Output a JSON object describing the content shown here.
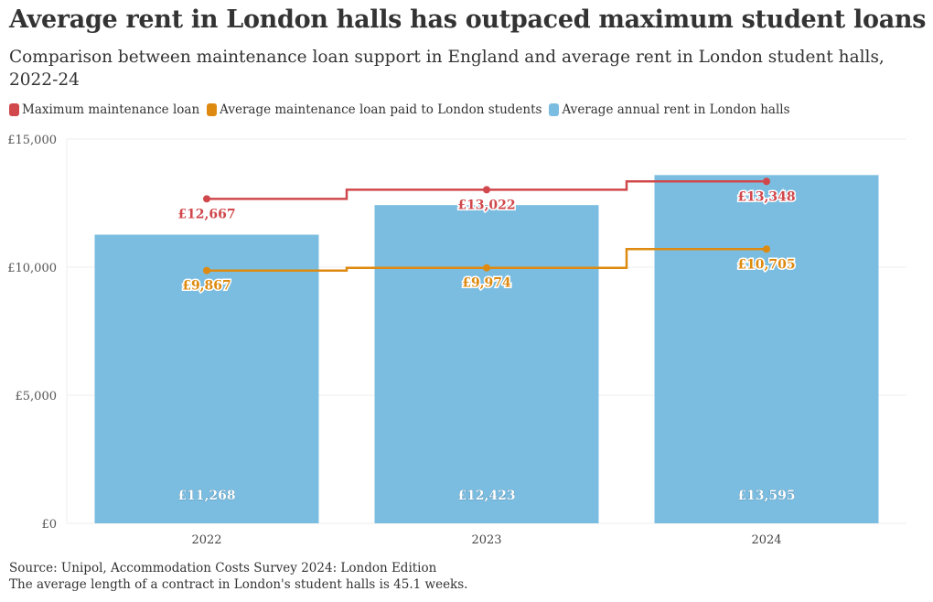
{
  "chart_data": {
    "type": "bar+step-line",
    "title": "Average rent in London halls has outpaced maximum student loans",
    "subtitle": "Comparison between maintenance loan support in England and average rent in London student halls, 2022-24",
    "categories": [
      "2022",
      "2023",
      "2024"
    ],
    "ylim": [
      0,
      15000
    ],
    "yticks": [
      0,
      5000,
      10000,
      15000
    ],
    "ytick_labels": [
      "£0",
      "£5,000",
      "£10,000",
      "£15,000"
    ],
    "grid": true,
    "legend_position": "top-left",
    "series": [
      {
        "name": "Maximum maintenance loan",
        "type": "step-line",
        "color": "#d0484c",
        "values": [
          12667,
          13022,
          13348
        ],
        "labels": [
          "£12,667",
          "£13,022",
          "£13,348"
        ]
      },
      {
        "name": "Average maintenance loan paid to London students",
        "type": "step-line",
        "color": "#de8a10",
        "values": [
          9867,
          9974,
          10705
        ],
        "labels": [
          "£9,867",
          "£9,974",
          "£10,705"
        ]
      },
      {
        "name": "Average annual rent in London halls",
        "type": "bar",
        "color": "#7bbde0",
        "values": [
          11268,
          12423,
          13595
        ],
        "labels": [
          "£11,268",
          "£12,423",
          "£13,595"
        ]
      }
    ]
  },
  "footer": {
    "source": "Source: Unipol, Accommodation Costs Survey 2024: London Edition",
    "note": "The average length of a contract in London's student halls is 45.1 weeks."
  }
}
